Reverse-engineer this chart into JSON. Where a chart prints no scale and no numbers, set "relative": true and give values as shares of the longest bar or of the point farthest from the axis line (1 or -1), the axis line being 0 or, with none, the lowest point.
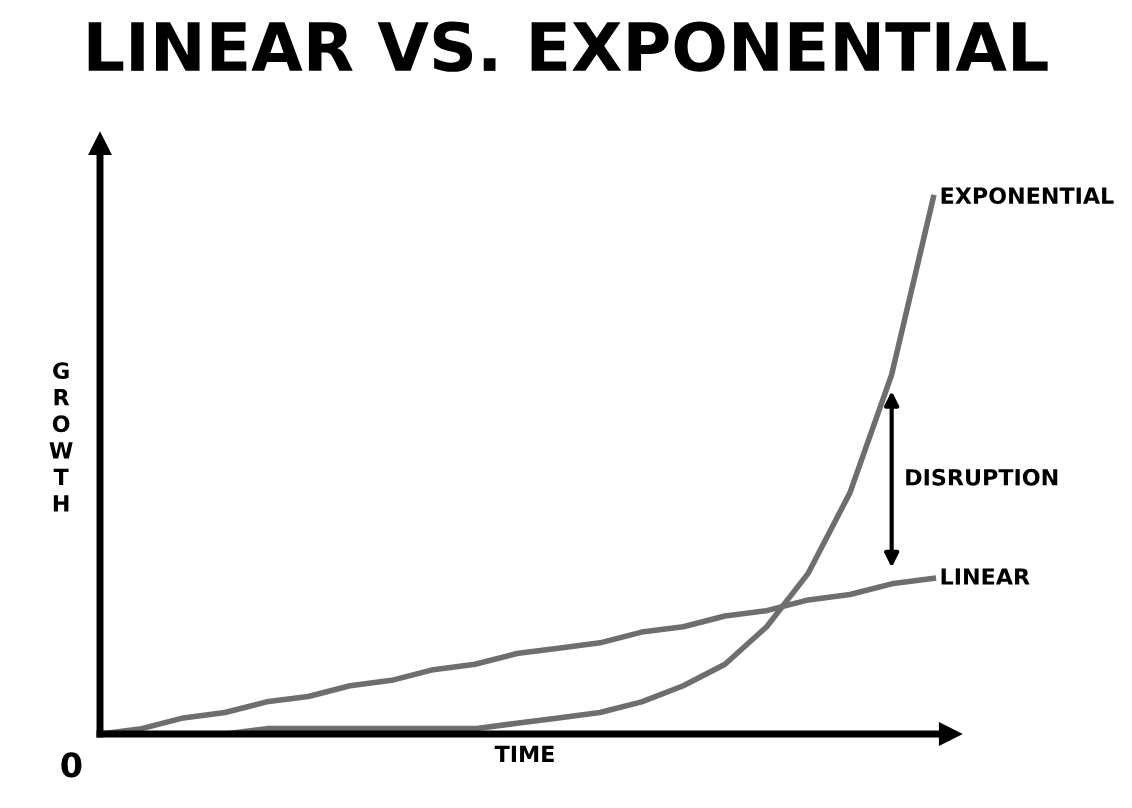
{
  "chart_data": {
    "type": "line",
    "title": "LINEAR VS. EXPONENTIAL",
    "xlabel": "TIME",
    "ylabel": "GROWTH",
    "relative": true,
    "categories": [
      null,
      null,
      null,
      null,
      null,
      null,
      null,
      null,
      null,
      null,
      null,
      null,
      null,
      null,
      null,
      null,
      null,
      null,
      null,
      null,
      null
    ],
    "series": [
      {
        "name": "EXPONENTIAL",
        "color": "#6e6e6e",
        "values": [
          0,
          0,
          0,
          0,
          0.01,
          0.01,
          0.01,
          0.01,
          0.01,
          0.01,
          0.02,
          0.03,
          0.04,
          0.06,
          0.09,
          0.13,
          0.2,
          0.3,
          0.45,
          0.67,
          1
        ]
      },
      {
        "name": "LINEAR",
        "color": "#6e6e6e",
        "values": [
          0,
          0.01,
          0.03,
          0.04,
          0.06,
          0.07,
          0.09,
          0.1,
          0.12,
          0.13,
          0.15,
          0.16,
          0.17,
          0.19,
          0.2,
          0.22,
          0.23,
          0.25,
          0.26,
          0.28,
          0.29
        ]
      }
    ],
    "annotations": [
      "0",
      "DISRUPTION"
    ],
    "legend": false,
    "marker": "none",
    "line_style": "solid"
  }
}
